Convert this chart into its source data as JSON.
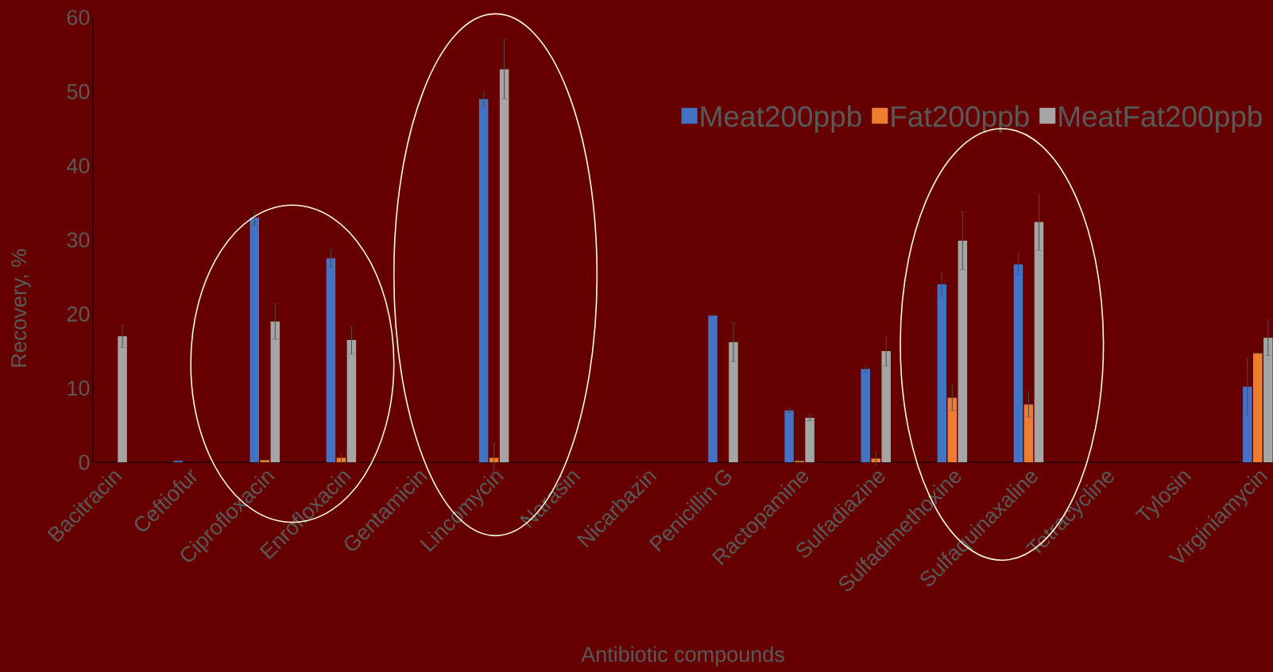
{
  "chart_data": {
    "type": "bar",
    "xlabel": "Antibiotic compounds",
    "ylabel": "Recovery, %",
    "categories": [
      "Bacitracin",
      "Ceftiofur",
      "Ciprofloxacin",
      "Enrofloxacin",
      "Gentamicin",
      "Lincomycin",
      "Narasin",
      "Nicarbazin",
      "Penicillin G",
      "Ractopamine",
      "Sulfadiazine",
      "Sulfadimethoxine",
      "Sulfaquinaxaline",
      "Tetracycline",
      "Tylosin",
      "Virginiamycin"
    ],
    "series": [
      {
        "name": "Meat200ppb",
        "color": "#4472c4",
        "values": [
          null,
          0.2,
          33,
          27.5,
          null,
          49,
          null,
          null,
          19.8,
          7,
          12.6,
          24,
          26.7,
          null,
          null,
          10.2
        ],
        "errors": [
          null,
          null,
          1,
          1.2,
          null,
          0.9,
          null,
          null,
          null,
          0.3,
          0.4,
          1.6,
          1.4,
          null,
          null,
          3.9
        ]
      },
      {
        "name": "Fat200ppb",
        "color": "#ed7d31",
        "values": [
          null,
          null,
          0.3,
          0.6,
          null,
          0.6,
          null,
          null,
          null,
          0.2,
          0.5,
          8.7,
          7.8,
          null,
          null,
          14.7
        ],
        "errors": [
          null,
          null,
          null,
          0.6,
          null,
          2,
          null,
          null,
          null,
          null,
          0.9,
          1.7,
          1.7,
          null,
          null,
          null
        ]
      },
      {
        "name": "MeatFat200ppb",
        "color": "#a5a5a5",
        "values": [
          17,
          null,
          19,
          16.5,
          null,
          53,
          null,
          null,
          16.2,
          6,
          15,
          29.9,
          32.4,
          null,
          null,
          16.8
        ],
        "errors": [
          1.5,
          null,
          2.4,
          1.9,
          null,
          4,
          null,
          null,
          2.6,
          0.4,
          2,
          3.9,
          3.8,
          null,
          null,
          2.4
        ]
      }
    ],
    "ylim": [
      0,
      60
    ],
    "yticks": [
      0,
      10,
      20,
      30,
      40,
      50,
      60
    ],
    "legend": "top right",
    "grid": false
  }
}
